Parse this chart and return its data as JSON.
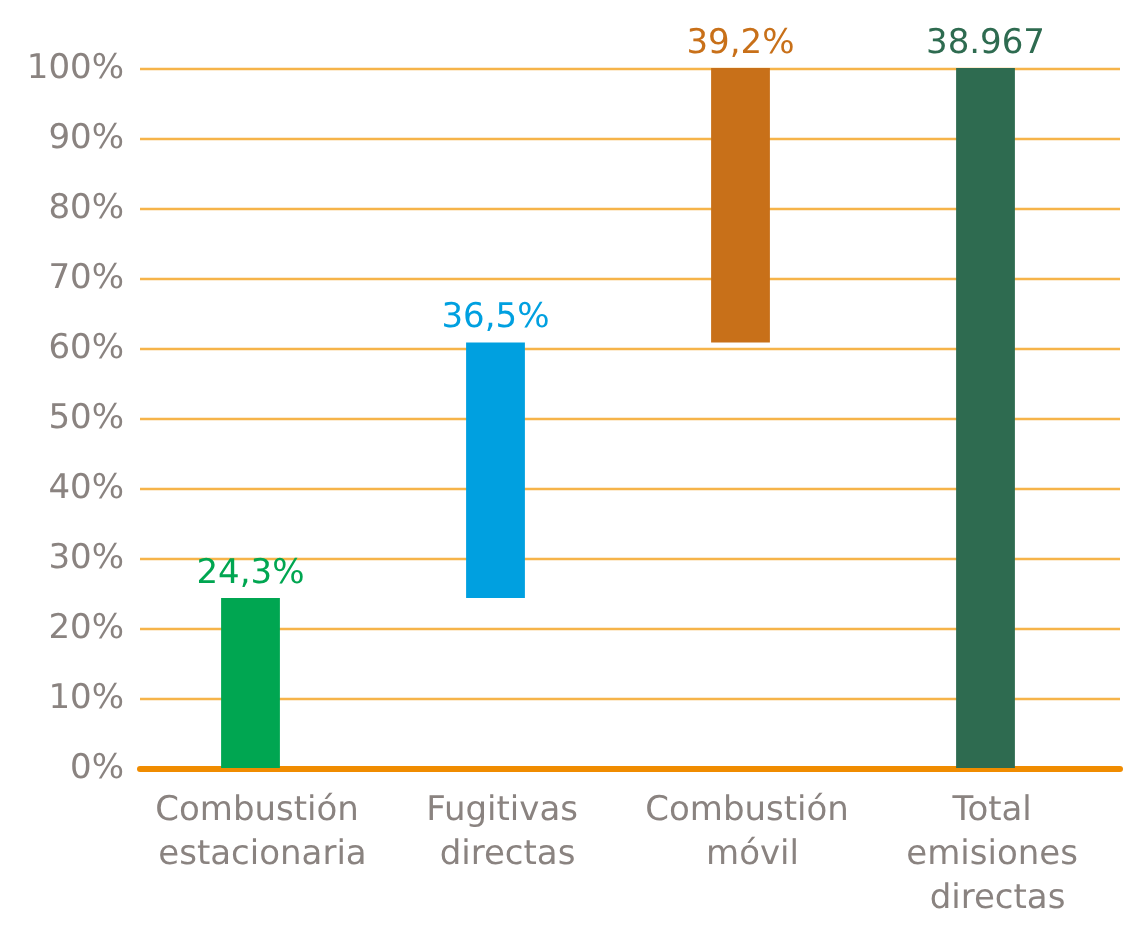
{
  "chart_data": {
    "type": "bar",
    "categories": [
      "Combustión estacionaria",
      "Fugitivas directas",
      "Combustión móvil",
      "Total emisiones directas"
    ],
    "values": [
      24.3,
      36.5,
      39.2,
      100
    ],
    "base": [
      0,
      24.3,
      60.8,
      0
    ],
    "colors": [
      "#00a651",
      "#00a0e0",
      "#c87019",
      "#2e6b50"
    ],
    "value_labels": [
      "24,3%",
      "36,5%",
      "39,2%",
      null
    ],
    "annotations": [
      {
        "text": "38.967",
        "x": "Total emisiones directas",
        "y": 100
      }
    ],
    "ylim": [
      0,
      100
    ],
    "yticks": [
      {
        "value": 0,
        "label": "0%"
      },
      {
        "value": 10,
        "label": "10%"
      },
      {
        "value": 20,
        "label": "20%"
      },
      {
        "value": 30,
        "label": "30%"
      },
      {
        "value": 40,
        "label": "40%"
      },
      {
        "value": 50,
        "label": "50%"
      },
      {
        "value": 60,
        "label": "60%"
      },
      {
        "value": 70,
        "label": "70%"
      },
      {
        "value": 80,
        "label": "80%"
      },
      {
        "value": 90,
        "label": "90%"
      },
      {
        "value": 100,
        "label": "100%"
      }
    ],
    "grid": "y"
  }
}
